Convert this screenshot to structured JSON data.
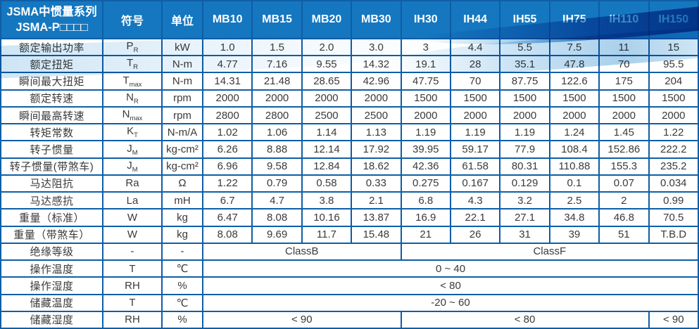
{
  "colors": {
    "header_bg": "#1577bf",
    "header_text": "#ffffff",
    "grid_border": "#0e5ea6",
    "body_text": "#3a3a3a",
    "highlight_value": "#2e74b8"
  },
  "table": {
    "title_line1": "JSMA中惯量系列",
    "title_line2": "JSMA-P□□□□",
    "col_headers": [
      "符号",
      "单位",
      "MB10",
      "MB15",
      "MB20",
      "MB30",
      "IH30",
      "IH44",
      "IH55",
      "IH75",
      "IH110",
      "IH150"
    ],
    "highlight": {
      "row_index": 11,
      "cell_index": 2
    },
    "rows": [
      {
        "label": "额定输出功率",
        "sym": "P",
        "sub": "R",
        "unit": "kW",
        "cells": [
          "1.0",
          "1.5",
          "2.0",
          "3.0",
          "3",
          "4.4",
          "5.5",
          "7.5",
          "11",
          "15"
        ]
      },
      {
        "label": "额定扭矩",
        "sym": "T",
        "sub": "R",
        "unit": "N-m",
        "cells": [
          "4.77",
          "7.16",
          "9.55",
          "14.32",
          "19.1",
          "28",
          "35.1",
          "47.8",
          "70",
          "95.5"
        ]
      },
      {
        "label": "瞬间最大扭矩",
        "sym": "T",
        "sub": "max",
        "unit": "N-m",
        "cells": [
          "14.31",
          "21.48",
          "28.65",
          "42.96",
          "47.75",
          "70",
          "87.75",
          "122.6",
          "175",
          "204"
        ]
      },
      {
        "label": "额定转速",
        "sym": "N",
        "sub": "R",
        "unit": "rpm",
        "cells": [
          "2000",
          "2000",
          "2000",
          "2000",
          "1500",
          "1500",
          "1500",
          "1500",
          "1500",
          "1500"
        ]
      },
      {
        "label": "瞬间最高转速",
        "sym": "N",
        "sub": "max",
        "unit": "rpm",
        "cells": [
          "2800",
          "2800",
          "2500",
          "2500",
          "2000",
          "2000",
          "2000",
          "2000",
          "2000",
          "2000"
        ]
      },
      {
        "label": "转矩常数",
        "sym": "K",
        "sub": "T",
        "unit": "N-m/A",
        "cells": [
          "1.02",
          "1.06",
          "1.14",
          "1.13",
          "1.19",
          "1.19",
          "1.19",
          "1.24",
          "1.45",
          "1.22"
        ]
      },
      {
        "label": "转子惯量",
        "sym": "J",
        "sub": "M",
        "unit": "kg-cm²",
        "cells": [
          "6.26",
          "8.88",
          "12.14",
          "17.92",
          "39.95",
          "59.17",
          "77.9",
          "108.4",
          "152.86",
          "222.2"
        ]
      },
      {
        "label": "转子惯量(带煞车)",
        "sym": "J",
        "sub": "M",
        "unit": "kg-cm²",
        "cells": [
          "6.96",
          "9.58",
          "12.84",
          "18.62",
          "42.36",
          "61.58",
          "80.31",
          "110.88",
          "155.3",
          "235.2"
        ]
      },
      {
        "label": "马达阻抗",
        "sym": "Ra",
        "sub": "",
        "unit": "Ω",
        "cells": [
          "1.22",
          "0.79",
          "0.58",
          "0.33",
          "0.275",
          "0.167",
          "0.129",
          "0.1",
          "0.07",
          "0.034"
        ]
      },
      {
        "label": "马达感抗",
        "sym": "La",
        "sub": "",
        "unit": "mH",
        "cells": [
          "6.7",
          "4.7",
          "3.8",
          "2.1",
          "6.8",
          "4.3",
          "3.2",
          "2.5",
          "2",
          "0.99"
        ]
      },
      {
        "label": "重量（标准）",
        "sym": "W",
        "sub": "",
        "unit": "kg",
        "cells": [
          "6.47",
          "8.08",
          "10.16",
          "13.87",
          "16.9",
          "22.1",
          "27.1",
          "34.8",
          "46.8",
          "70.5"
        ]
      },
      {
        "label": "重量（带煞车）",
        "sym": "W",
        "sub": "",
        "unit": "kg",
        "cells": [
          "8.08",
          "9.69",
          "11.7",
          "15.48",
          "21",
          "26",
          "31",
          "39",
          "51",
          "T.B.D"
        ]
      },
      {
        "label": "绝缘等级",
        "sym": "-",
        "sub": "",
        "unit": "-",
        "spans": [
          {
            "text": "ClassB",
            "span": 4
          },
          {
            "text": "ClassF",
            "span": 6
          }
        ]
      },
      {
        "label": "操作温度",
        "sym": "T",
        "sub": "",
        "unit": "℃",
        "spans": [
          {
            "text": "0 ~ 40",
            "span": 10
          }
        ]
      },
      {
        "label": "操作湿度",
        "sym": "RH",
        "sub": "",
        "unit": "%",
        "spans": [
          {
            "text": "< 80",
            "span": 10
          }
        ]
      },
      {
        "label": "储藏温度",
        "sym": "T",
        "sub": "",
        "unit": "℃",
        "spans": [
          {
            "text": "-20 ~ 60",
            "span": 10
          }
        ]
      },
      {
        "label": "储藏湿度",
        "sym": "RH",
        "sub": "",
        "unit": "%",
        "spans": [
          {
            "text": "< 90",
            "span": 4
          },
          {
            "text": "< 80",
            "span": 5
          },
          {
            "text": "< 90",
            "span": 1
          }
        ]
      }
    ]
  }
}
